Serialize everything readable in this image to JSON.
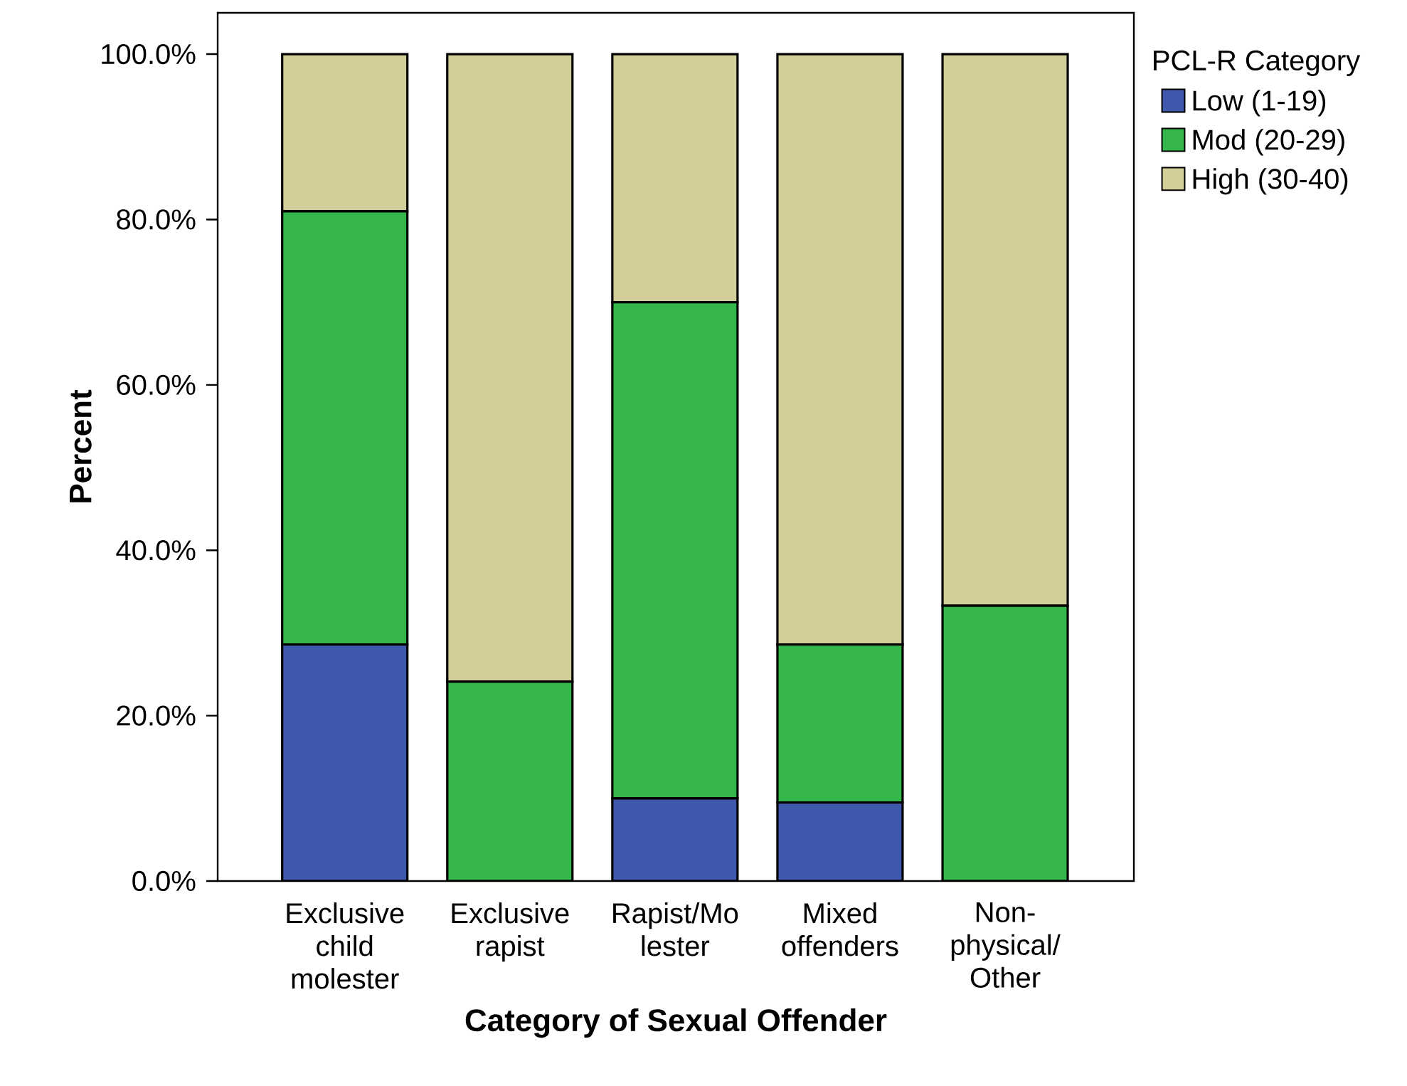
{
  "chart_data": {
    "type": "bar",
    "stacked": true,
    "xlabel": "Category of Sexual Offender",
    "ylabel": "Percent",
    "legend_title": "PCL-R Category",
    "legend": "top right",
    "categories": [
      "Exclusive child molester",
      "Exclusive rapist",
      "Rapist/Mo lester",
      "Mixed offenders",
      "Non- physical/ Other"
    ],
    "series": [
      {
        "name": "Low (1-19)",
        "color": "#3e58ac",
        "values": [
          28.6,
          0,
          10.0,
          9.5,
          0
        ]
      },
      {
        "name": "Mod (20-29)",
        "color": "#35b64a",
        "values": [
          52.4,
          24.1,
          60.0,
          19.1,
          33.3
        ]
      },
      {
        "name": "High (30-40)",
        "color": "#d4cf9a",
        "values": [
          19.0,
          75.9,
          30.0,
          71.4,
          66.7
        ]
      }
    ],
    "ylim": [
      0,
      105
    ],
    "yticks": [
      {
        "value": 0,
        "label": "0.0%"
      },
      {
        "value": 20,
        "label": "20.0%"
      },
      {
        "value": 40,
        "label": "40.0%"
      },
      {
        "value": 60,
        "label": "60.0%"
      },
      {
        "value": 80,
        "label": "80.0%"
      },
      {
        "value": 100,
        "label": "100.0%"
      }
    ]
  }
}
